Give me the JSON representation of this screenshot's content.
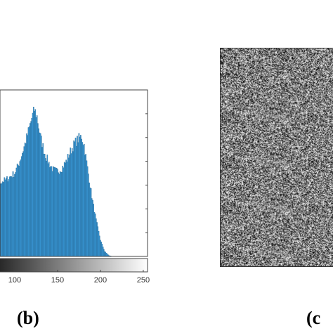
{
  "chart_data": {
    "type": "bar",
    "title": "",
    "xlabel": "",
    "ylabel": "",
    "x_ticks": [
      "100",
      "150",
      "200",
      "250"
    ],
    "xlim": [
      50,
      255
    ],
    "ylim": [
      0,
      1
    ],
    "grid": false,
    "colorbar": "grayscale gradient below x-axis",
    "bar_color": "#3a9ad9",
    "bar_edge_color": "#1f5f8b",
    "envelope_x": [
      50,
      60,
      70,
      80,
      90,
      100,
      105,
      110,
      115,
      120,
      123,
      126,
      130,
      135,
      140,
      145,
      150,
      155,
      160,
      165,
      170,
      175,
      178,
      181,
      185,
      190,
      195,
      200,
      205,
      210,
      215,
      220
    ],
    "envelope_y": [
      0.4,
      0.41,
      0.42,
      0.44,
      0.46,
      0.5,
      0.56,
      0.64,
      0.73,
      0.83,
      0.88,
      0.84,
      0.72,
      0.62,
      0.56,
      0.52,
      0.51,
      0.53,
      0.57,
      0.63,
      0.68,
      0.71,
      0.72,
      0.67,
      0.53,
      0.36,
      0.22,
      0.1,
      0.03,
      0.005,
      0,
      0
    ]
  },
  "panels": {
    "b_label": "(b)",
    "c_label": "(c"
  }
}
